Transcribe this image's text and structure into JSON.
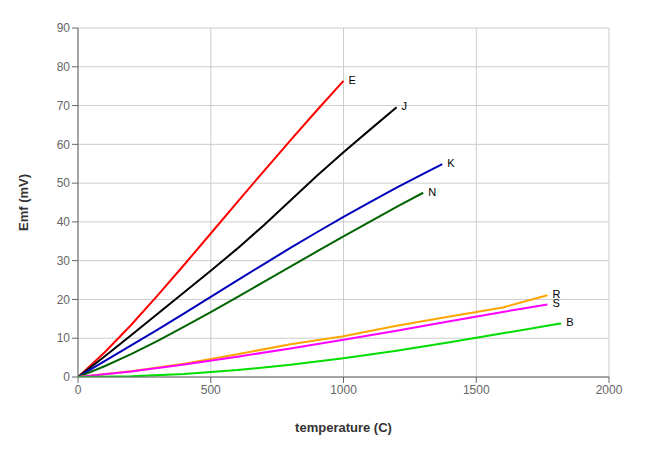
{
  "chart_data": {
    "type": "line",
    "xlabel": "temperature (C)",
    "ylabel": "Emf (mV)",
    "xlim": [
      0,
      2000
    ],
    "ylim": [
      0,
      90
    ],
    "xticks": [
      0,
      500,
      1000,
      1500,
      2000
    ],
    "yticks": [
      0,
      10,
      20,
      30,
      40,
      50,
      60,
      70,
      80,
      90
    ],
    "grid": true,
    "series": [
      {
        "name": "E",
        "color": "#ff0000",
        "x": [
          0,
          100,
          200,
          300,
          400,
          500,
          600,
          700,
          800,
          900,
          1000
        ],
        "values": [
          0,
          6.319,
          13.421,
          21.033,
          28.946,
          37.005,
          45.093,
          53.112,
          61.022,
          68.787,
          76.373
        ]
      },
      {
        "name": "J",
        "color": "#000000",
        "x": [
          0,
          100,
          200,
          300,
          400,
          500,
          600,
          700,
          800,
          900,
          1000,
          1100,
          1200
        ],
        "values": [
          0,
          5.269,
          10.779,
          16.327,
          21.848,
          27.393,
          33.102,
          39.132,
          45.494,
          51.877,
          57.953,
          63.792,
          69.553
        ]
      },
      {
        "name": "K",
        "color": "#0000bb",
        "x": [
          0,
          100,
          200,
          300,
          400,
          500,
          600,
          700,
          800,
          900,
          1000,
          1100,
          1200,
          1300,
          1372
        ],
        "values": [
          0,
          4.096,
          8.138,
          12.209,
          16.397,
          20.644,
          24.905,
          29.129,
          33.275,
          37.326,
          41.276,
          45.119,
          48.838,
          52.41,
          54.886
        ]
      },
      {
        "name": "N",
        "color": "#006400",
        "x": [
          0,
          100,
          200,
          300,
          400,
          500,
          600,
          700,
          800,
          900,
          1000,
          1100,
          1200,
          1300
        ],
        "values": [
          0,
          2.774,
          5.913,
          9.341,
          12.974,
          16.748,
          20.613,
          24.527,
          28.455,
          32.371,
          36.256,
          40.087,
          43.846,
          47.513
        ]
      },
      {
        "name": "R",
        "color": "#ffa500",
        "x": [
          0,
          200,
          400,
          600,
          800,
          1000,
          1200,
          1400,
          1600,
          1768
        ],
        "values": [
          0,
          1.469,
          3.408,
          5.852,
          8.449,
          10.506,
          13.228,
          15.582,
          17.947,
          21.101
        ]
      },
      {
        "name": "S",
        "color": "#ff00ff",
        "x": [
          0,
          200,
          400,
          600,
          800,
          1000,
          1200,
          1400,
          1600,
          1768
        ],
        "values": [
          0,
          1.441,
          3.251,
          5.239,
          7.345,
          9.587,
          11.951,
          14.373,
          16.771,
          18.693
        ]
      },
      {
        "name": "B",
        "color": "#00dd00",
        "x": [
          0,
          200,
          400,
          600,
          800,
          1000,
          1200,
          1400,
          1600,
          1800,
          1820
        ],
        "values": [
          0,
          0.178,
          0.787,
          1.792,
          3.154,
          4.834,
          6.786,
          8.956,
          11.263,
          13.591,
          13.82
        ]
      }
    ]
  }
}
